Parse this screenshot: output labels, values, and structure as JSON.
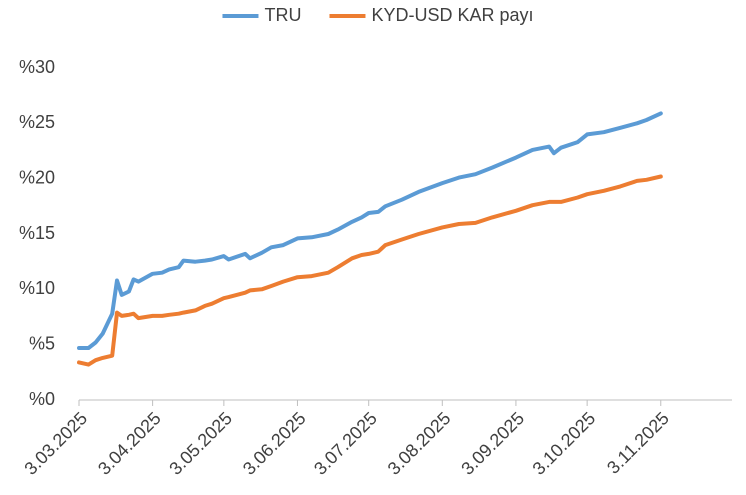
{
  "chart_data": {
    "type": "line",
    "x": [
      "2025-03-03",
      "2025-03-07",
      "2025-03-10",
      "2025-03-13",
      "2025-03-17",
      "2025-03-19",
      "2025-03-21",
      "2025-03-24",
      "2025-03-26",
      "2025-03-28",
      "2025-04-03",
      "2025-04-07",
      "2025-04-10",
      "2025-04-14",
      "2025-04-16",
      "2025-04-21",
      "2025-04-25",
      "2025-04-28",
      "2025-05-03",
      "2025-05-05",
      "2025-05-12",
      "2025-05-14",
      "2025-05-19",
      "2025-05-23",
      "2025-05-28",
      "2025-06-03",
      "2025-06-09",
      "2025-06-16",
      "2025-06-20",
      "2025-06-26",
      "2025-06-30",
      "2025-07-03",
      "2025-07-07",
      "2025-07-10",
      "2025-07-17",
      "2025-07-24",
      "2025-08-03",
      "2025-08-10",
      "2025-08-17",
      "2025-08-24",
      "2025-09-03",
      "2025-09-10",
      "2025-09-17",
      "2025-09-19",
      "2025-09-22",
      "2025-09-29",
      "2025-10-03",
      "2025-10-10",
      "2025-10-17",
      "2025-10-24",
      "2025-10-28",
      "2025-11-03"
    ],
    "series": [
      {
        "name": "TRU",
        "color": "#5b9bd5",
        "values": [
          4.7,
          4.7,
          5.2,
          6.0,
          7.8,
          10.8,
          9.5,
          9.8,
          10.9,
          10.7,
          11.4,
          11.5,
          11.8,
          12.0,
          12.6,
          12.5,
          12.6,
          12.7,
          13.0,
          12.7,
          13.2,
          12.8,
          13.3,
          13.8,
          14.0,
          14.6,
          14.7,
          15.0,
          15.4,
          16.1,
          16.5,
          16.9,
          17.0,
          17.5,
          18.1,
          18.8,
          19.6,
          20.1,
          20.4,
          21.0,
          21.9,
          22.6,
          22.9,
          22.3,
          22.8,
          23.3,
          24.0,
          24.2,
          24.6,
          25.0,
          25.3,
          25.9
        ]
      },
      {
        "name": "KYD-USD KAR payı",
        "color": "#ed7d31",
        "values": [
          3.4,
          3.2,
          3.6,
          3.8,
          4.0,
          7.9,
          7.6,
          7.7,
          7.8,
          7.4,
          7.6,
          7.6,
          7.7,
          7.8,
          7.9,
          8.1,
          8.5,
          8.7,
          9.2,
          9.3,
          9.7,
          9.9,
          10.0,
          10.3,
          10.7,
          11.1,
          11.2,
          11.5,
          12.0,
          12.8,
          13.1,
          13.2,
          13.4,
          14.0,
          14.5,
          15.0,
          15.6,
          15.9,
          16.0,
          16.5,
          17.1,
          17.6,
          17.9,
          17.9,
          17.9,
          18.3,
          18.6,
          18.9,
          19.3,
          19.8,
          19.9,
          20.2
        ]
      }
    ],
    "xlim": [
      "2025-03-03",
      "2025-12-03"
    ],
    "xticks": [
      {
        "value": "2025-03-03",
        "label": "3.03.2025"
      },
      {
        "value": "2025-04-03",
        "label": "3.04.2025"
      },
      {
        "value": "2025-05-03",
        "label": "3.05.2025"
      },
      {
        "value": "2025-06-03",
        "label": "3.06.2025"
      },
      {
        "value": "2025-07-03",
        "label": "3.07.2025"
      },
      {
        "value": "2025-08-03",
        "label": "3.08.2025"
      },
      {
        "value": "2025-09-03",
        "label": "3.09.2025"
      },
      {
        "value": "2025-10-03",
        "label": "3.10.2025"
      },
      {
        "value": "2025-11-03",
        "label": "3.11.2025"
      }
    ],
    "ylim": [
      0,
      30
    ],
    "yticks": [
      {
        "value": 0,
        "label": "%0"
      },
      {
        "value": 5,
        "label": "%5"
      },
      {
        "value": 10,
        "label": "%10"
      },
      {
        "value": 15,
        "label": "%15"
      },
      {
        "value": 20,
        "label": "%20"
      },
      {
        "value": 25,
        "label": "%25"
      },
      {
        "value": 30,
        "label": "%30"
      }
    ],
    "grid": false,
    "legend": "top"
  }
}
